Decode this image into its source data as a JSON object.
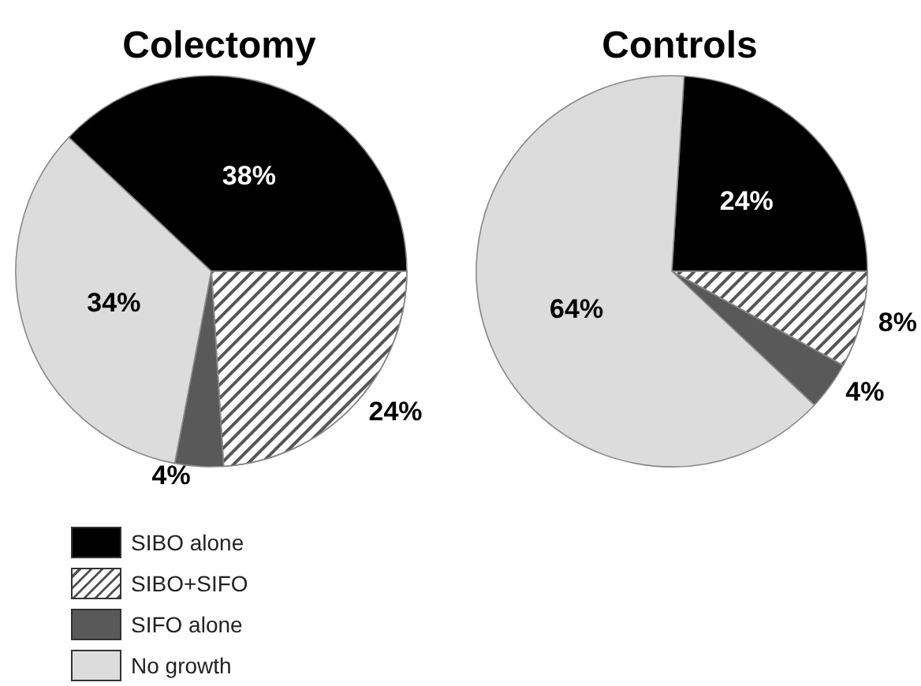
{
  "chart_data": [
    {
      "type": "pie",
      "title": "Colectomy",
      "categories": [
        "SIBO alone",
        "SIBO+SIFO",
        "SIFO alone",
        "No growth"
      ],
      "values": [
        38,
        24,
        4,
        34
      ],
      "value_labels": [
        "38%",
        "24%",
        "4%",
        "34%"
      ],
      "colors": [
        "#000000",
        "#ffffff",
        "#595959",
        "#dcdcdc"
      ],
      "legend": "bottom left"
    },
    {
      "type": "pie",
      "title": "Controls",
      "categories": [
        null,
        null,
        null,
        null
      ],
      "values": [
        24,
        8,
        4,
        64
      ],
      "value_labels": [
        "24%",
        "8%",
        "4%",
        "64%"
      ],
      "colors": [
        "#000000",
        "#ffffff",
        "#595959",
        "#dcdcdc"
      ]
    }
  ]
}
